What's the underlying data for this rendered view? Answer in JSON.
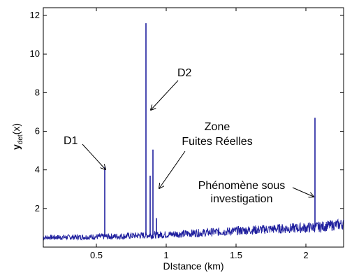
{
  "chart_data": {
    "type": "line",
    "xlabel": "DIstance (km)",
    "ylabel_main": "y",
    "ylabel_sub": "det",
    "ylabel_tail": "(x)",
    "xlim": [
      0.12,
      2.27
    ],
    "ylim": [
      0,
      12.4
    ],
    "xticks": [
      0.5,
      1,
      1.5,
      2
    ],
    "xtick_labels": [
      "0.5",
      "1",
      "1.5",
      "2"
    ],
    "yticks": [
      2,
      4,
      6,
      8,
      10,
      12
    ],
    "ytick_labels": [
      "2",
      "4",
      "6",
      "8",
      "10",
      "12"
    ],
    "grid": false,
    "series_color": "#1f1f9e",
    "baseline": {
      "x": [
        0.12,
        0.4,
        0.6,
        0.8,
        1.0,
        1.2,
        1.4,
        1.6,
        1.8,
        2.0,
        2.1,
        2.27
      ],
      "y": [
        0.5,
        0.52,
        0.55,
        0.6,
        0.65,
        0.72,
        0.8,
        0.88,
        0.95,
        1.0,
        1.05,
        1.2
      ]
    },
    "peaks": [
      {
        "x": 0.56,
        "y": 4.15
      },
      {
        "x": 0.855,
        "y": 11.6
      },
      {
        "x": 0.885,
        "y": 3.7
      },
      {
        "x": 0.905,
        "y": 5.05
      },
      {
        "x": 0.93,
        "y": 1.5
      },
      {
        "x": 2.065,
        "y": 6.7
      }
    ],
    "annotations": [
      {
        "id": "d1",
        "lines": [
          "D1"
        ]
      },
      {
        "id": "d2",
        "lines": [
          "D2"
        ]
      },
      {
        "id": "zone",
        "lines": [
          "Zone",
          "Fuites Réelles"
        ]
      },
      {
        "id": "phen",
        "lines": [
          "Phénomène sous",
          "investigation"
        ]
      }
    ]
  }
}
